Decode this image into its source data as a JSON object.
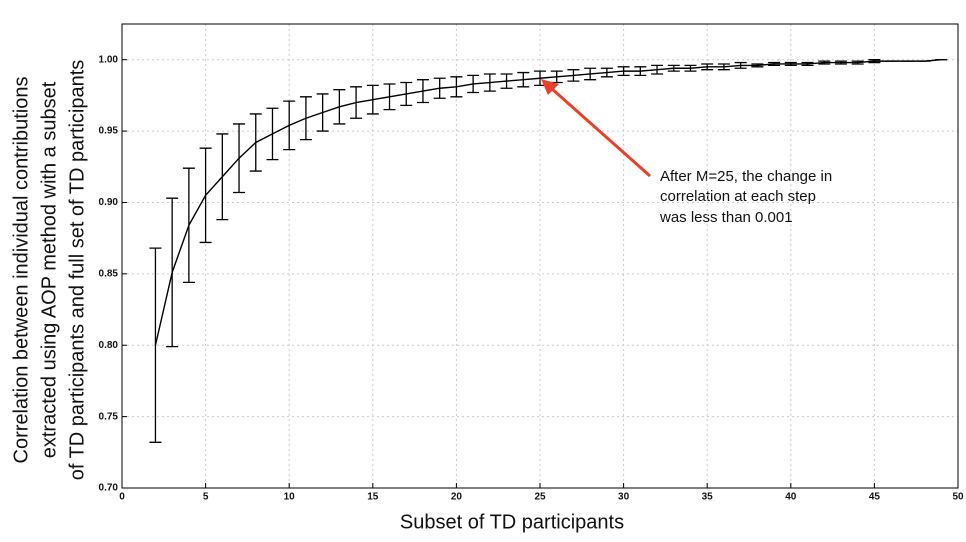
{
  "chart_data": {
    "type": "errorbar",
    "xlabel": "Subset of TD participants",
    "ylabel": [
      "Correlation between individual contributions",
      "extracted using AOP method with a subset",
      "of TD participants and full set of TD participants"
    ],
    "annotation": [
      "After M=25, the change in",
      "correlation at each step",
      "was less than 0.001"
    ],
    "x": [
      2,
      3,
      4,
      5,
      6,
      7,
      8,
      9,
      10,
      11,
      12,
      13,
      14,
      15,
      16,
      17,
      18,
      19,
      20,
      21,
      22,
      23,
      24,
      25,
      26,
      27,
      28,
      29,
      30,
      31,
      32,
      33,
      34,
      35,
      36,
      37,
      38,
      39,
      40,
      41,
      42,
      43,
      44,
      45,
      46,
      47,
      48,
      49
    ],
    "values": [
      0.8,
      0.851,
      0.884,
      0.905,
      0.918,
      0.931,
      0.942,
      0.948,
      0.954,
      0.959,
      0.963,
      0.967,
      0.97,
      0.972,
      0.974,
      0.976,
      0.978,
      0.98,
      0.981,
      0.983,
      0.984,
      0.985,
      0.986,
      0.987,
      0.988,
      0.989,
      0.99,
      0.991,
      0.992,
      0.992,
      0.993,
      0.994,
      0.994,
      0.995,
      0.995,
      0.996,
      0.996,
      0.997,
      0.997,
      0.997,
      0.998,
      0.998,
      0.998,
      0.999,
      0.999,
      0.999,
      0.999,
      1.0
    ],
    "errors": [
      0.068,
      0.052,
      0.04,
      0.033,
      0.03,
      0.024,
      0.02,
      0.018,
      0.017,
      0.015,
      0.013,
      0.012,
      0.011,
      0.01,
      0.009,
      0.008,
      0.008,
      0.007,
      0.007,
      0.006,
      0.006,
      0.005,
      0.005,
      0.005,
      0.004,
      0.004,
      0.004,
      0.003,
      0.003,
      0.003,
      0.003,
      0.002,
      0.002,
      0.002,
      0.002,
      0.002,
      0.001,
      0.001,
      0.001,
      0.001,
      0.001,
      0.001,
      0.001,
      0.001,
      0,
      0,
      0,
      0
    ],
    "color": "#000000",
    "annotation_color": "#e8402a",
    "xlim": [
      0,
      50
    ],
    "xticks": [
      0,
      5,
      10,
      15,
      20,
      25,
      30,
      35,
      40,
      45,
      50
    ],
    "ylim": [
      0.7,
      1.025
    ],
    "yticks": [
      {
        "value": 0.7,
        "label": "0.70"
      },
      {
        "value": 0.75,
        "label": "0.75"
      },
      {
        "value": 0.8,
        "label": "0.80"
      },
      {
        "value": 0.85,
        "label": "0.85"
      },
      {
        "value": 0.9,
        "label": "0.90"
      },
      {
        "value": 0.95,
        "label": "0.95"
      },
      {
        "value": 1.0,
        "label": "1.00"
      }
    ],
    "grid": true
  }
}
